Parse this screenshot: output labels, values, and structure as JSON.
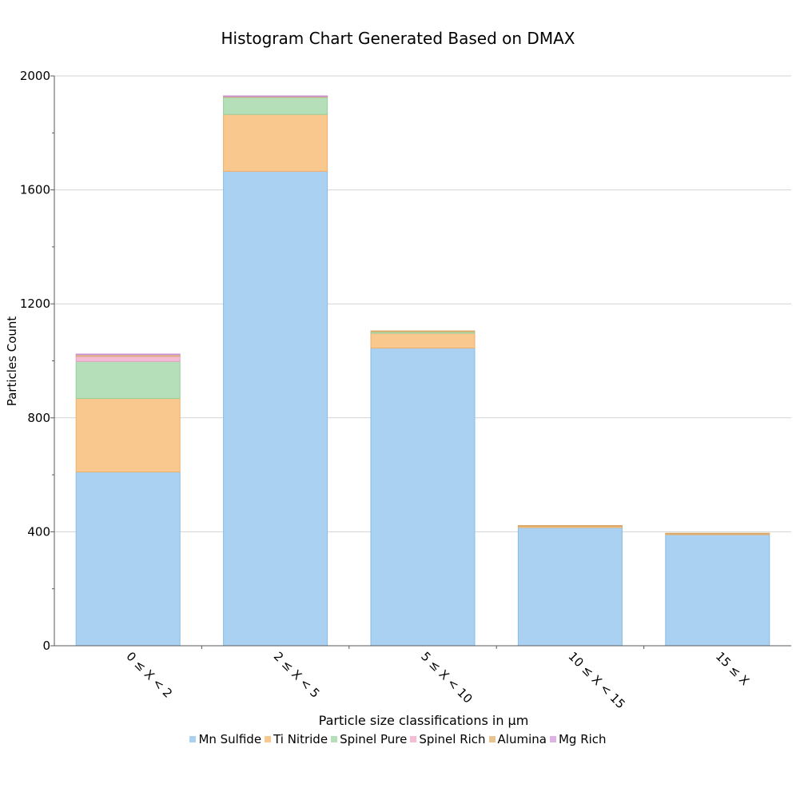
{
  "chart_data": {
    "type": "bar",
    "stacked": true,
    "title": "Histogram Chart Generated Based on DMAX",
    "xlabel": "Particle size classifications in μm",
    "ylabel": "Particles Count",
    "categories": [
      "0 ≤ X < 2",
      "2 ≤ X < 5",
      "5 ≤ X < 10",
      "10 ≤ X < 15",
      "15 ≤ X"
    ],
    "ylim": [
      0,
      2000
    ],
    "yticks": [
      0,
      400,
      800,
      1200,
      1600,
      2000
    ],
    "grid": true,
    "legend_position": "bottom",
    "series": [
      {
        "name": "Mn Sulfide",
        "color": "#aad1f2",
        "stroke": "#86bde6",
        "values": [
          610,
          1665,
          1045,
          415,
          390
        ]
      },
      {
        "name": "Ti Nitride",
        "color": "#f8c88e",
        "stroke": "#efb06a",
        "values": [
          258,
          200,
          52,
          5,
          3
        ]
      },
      {
        "name": "Spinel Pure",
        "color": "#b4dfb8",
        "stroke": "#96cf9c",
        "values": [
          130,
          60,
          6,
          0,
          0
        ]
      },
      {
        "name": "Spinel Rich",
        "color": "#f5bcd6",
        "stroke": "#eaa0c2",
        "values": [
          18,
          0,
          0,
          0,
          0
        ]
      },
      {
        "name": "Alumina",
        "color": "#e7c391",
        "stroke": "#d9a766",
        "values": [
          6,
          4,
          2,
          2,
          2
        ]
      },
      {
        "name": "Mg Rich",
        "color": "#dcb3e3",
        "stroke": "#c994d3",
        "values": [
          2,
          1,
          0,
          0,
          0
        ]
      }
    ]
  }
}
